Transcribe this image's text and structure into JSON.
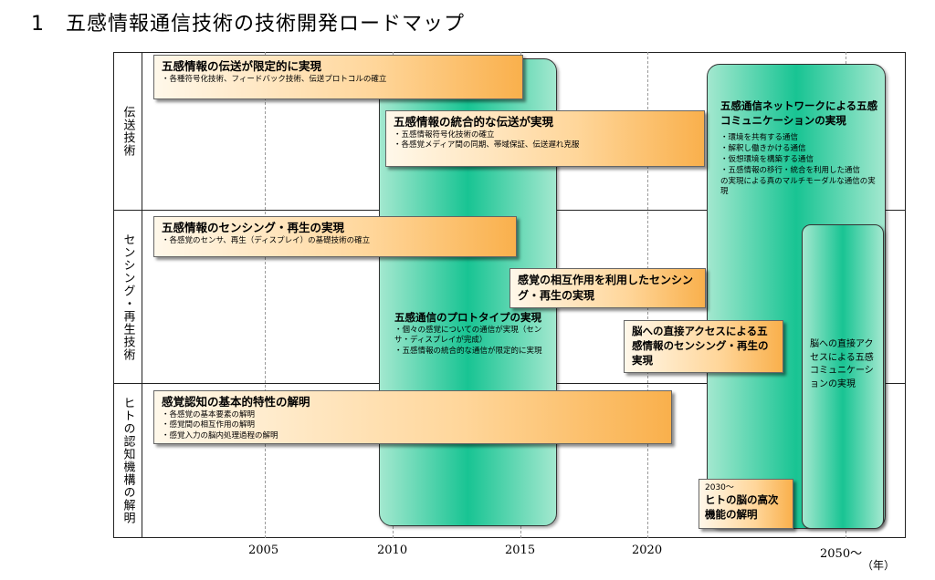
{
  "title": "1　五感情報通信技術の技術開発ロードマップ",
  "row_labels": [
    "伝送技術",
    "センシング・再生技術",
    "ヒトの認知機構の解明"
  ],
  "x_axis": {
    "ticks": [
      "2005",
      "2010",
      "2015",
      "2020",
      "2050〜"
    ],
    "unit": "（年）"
  },
  "boxes": {
    "transmission_limited": {
      "title": "五感情報の伝送が限定的に実現",
      "items": [
        "・各種符号化技術、フィードバック技術、伝送プロトコルの確立"
      ]
    },
    "transmission_integrated": {
      "title": "五感情報の統合的な伝送が実現",
      "items": [
        "・五感情報符号化技術の確立",
        "・各感覚メディア間の同期、帯域保証、伝送遅れ克服"
      ]
    },
    "sensing_basic": {
      "title": "五感情報のセンシング・再生の実現",
      "items": [
        "・各感覚のセンサ、再生（ディスプレイ）の基礎技術の確立"
      ]
    },
    "sensing_interaction": {
      "title": "感覚の相互作用を利用したセンシング・再生の実現",
      "items": []
    },
    "brain_sensing": {
      "title": "脳への直接アクセスによる五感情報のセンシング・再生の実現",
      "items": []
    },
    "cognition_basic": {
      "title": "感覚認知の基本的特性の解明",
      "items": [
        "・各感覚の基本要素の解明",
        "・感覚間の相互作用の解明",
        "・感覚入力の脳内処理過程の解明"
      ]
    },
    "brain_higher": {
      "year": "2030〜",
      "title": "ヒトの脳の高次機能の解明"
    }
  },
  "green_bars": {
    "prototype": {
      "title": "五感通信のプロトタイプの実現",
      "items": [
        "・個々の感覚についての通信が実現（センサ・ディスプレイが完成）",
        "・五感情報の統合的な通信が限定的に実現"
      ]
    },
    "network": {
      "title": "五感通信ネットワークによる五感コミュニケーションの実現",
      "items": [
        "・環境を共有する通信",
        "・解釈し働きかける通信",
        "・仮想環境を構築する通信",
        "・五感情報の移行・統合を利用した通信"
      ],
      "footer": "の実現による真のマルチモーダルな通信の実現"
    },
    "brain_comm": {
      "title": "脳への直接アクセスによる五感コミュニケーションの実現"
    }
  },
  "colors": {
    "green_center": "#18c493",
    "green_edge": "#a3e8cf",
    "orange_light": "#fff8ea",
    "orange_dark": "#f9b04c"
  }
}
